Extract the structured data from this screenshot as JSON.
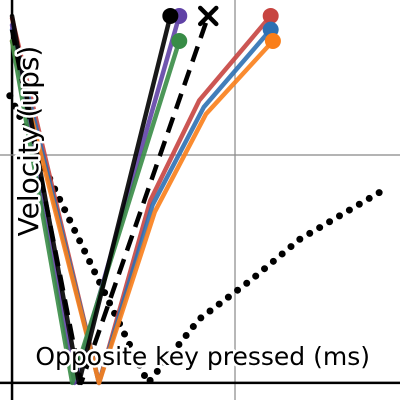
{
  "chart_data": {
    "type": "line",
    "x_label": "Opposite key pressed (ms)",
    "y_label": "Velocity (ups)",
    "xlim": [
      -5.4,
      174
    ],
    "ylim": [
      -7.5,
      168
    ],
    "xticks": [
      0,
      100
    ],
    "yticks": [
      0,
      100
    ],
    "grid": true,
    "series": [
      {
        "color": "#000000",
        "style": "dotted",
        "marker": "none",
        "x": [
          -1,
          61,
          84,
          107,
          129,
          169
        ],
        "values": [
          126,
          0,
          28,
          45,
          63,
          86
        ]
      },
      {
        "color": "#c74440",
        "style": "solid",
        "marker": "dot",
        "x": [
          0,
          39,
          62,
          84,
          116
        ],
        "values": [
          160,
          0,
          80,
          124,
          161
        ]
      },
      {
        "color": "#2d70b3",
        "style": "solid",
        "marker": "dot",
        "x": [
          0,
          39,
          63,
          86,
          116
        ],
        "values": [
          155,
          0,
          78,
          121,
          155
        ]
      },
      {
        "color": "#fa7e19",
        "style": "solid",
        "marker": "dot",
        "x": [
          0,
          39,
          64,
          87,
          117
        ],
        "values": [
          150,
          0,
          75,
          118,
          150
        ]
      },
      {
        "color": "#6042a6",
        "style": "solid",
        "marker": "dot",
        "x": [
          0,
          28,
          75
        ],
        "values": [
          157,
          0,
          161
        ]
      },
      {
        "color": "#388c46",
        "style": "solid",
        "marker": "dot",
        "x": [
          0,
          27,
          75
        ],
        "values": [
          150,
          0,
          150
        ]
      },
      {
        "color": "#000000",
        "style": "dashed",
        "marker": "x",
        "x": [
          0,
          31,
          88
        ],
        "values": [
          155,
          0,
          161
        ]
      },
      {
        "color": "#000000",
        "style": "solid",
        "marker": "dot",
        "x": [
          0,
          30,
          71
        ],
        "values": [
          161,
          0,
          161
        ]
      }
    ]
  }
}
